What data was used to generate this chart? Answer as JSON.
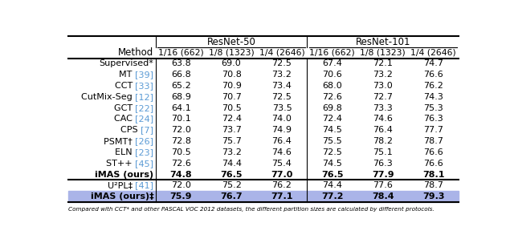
{
  "col_headers_sub": [
    "Method",
    "1/16 (662)",
    "1/8 (1323)",
    "1/4 (2646)",
    "1/16 (662)",
    "1/8 (1323)",
    "1/4 (2646)"
  ],
  "rows": [
    {
      "method": "Supervised*",
      "cite": "",
      "values": [
        "63.8",
        "69.0",
        "72.5",
        "67.4",
        "72.1",
        "74.7"
      ],
      "bold": false,
      "highlight": false
    },
    {
      "method": "MT ",
      "cite": "[39]",
      "values": [
        "66.8",
        "70.8",
        "73.2",
        "70.6",
        "73.2",
        "76.6"
      ],
      "bold": false,
      "highlight": false
    },
    {
      "method": "CCT ",
      "cite": "[33]",
      "values": [
        "65.2",
        "70.9",
        "73.4",
        "68.0",
        "73.0",
        "76.2"
      ],
      "bold": false,
      "highlight": false
    },
    {
      "method": "CutMix-Seg ",
      "cite": "[12]",
      "values": [
        "68.9",
        "70.7",
        "72.5",
        "72.6",
        "72.7",
        "74.3"
      ],
      "bold": false,
      "highlight": false
    },
    {
      "method": "GCT ",
      "cite": "[22]",
      "values": [
        "64.1",
        "70.5",
        "73.5",
        "69.8",
        "73.3",
        "75.3"
      ],
      "bold": false,
      "highlight": false
    },
    {
      "method": "CAC ",
      "cite": "[24]",
      "values": [
        "70.1",
        "72.4",
        "74.0",
        "72.4",
        "74.6",
        "76.3"
      ],
      "bold": false,
      "highlight": false
    },
    {
      "method": "CPS ",
      "cite": "[7]",
      "values": [
        "72.0",
        "73.7",
        "74.9",
        "74.5",
        "76.4",
        "77.7"
      ],
      "bold": false,
      "highlight": false
    },
    {
      "method": "PSMT† ",
      "cite": "[26]",
      "values": [
        "72.8",
        "75.7",
        "76.4",
        "75.5",
        "78.2",
        "78.7"
      ],
      "bold": false,
      "highlight": false
    },
    {
      "method": "ELN ",
      "cite": "[23]",
      "values": [
        "70.5",
        "73.2",
        "74.6",
        "72.5",
        "75.1",
        "76.6"
      ],
      "bold": false,
      "highlight": false
    },
    {
      "method": "ST++ ",
      "cite": "[45]",
      "values": [
        "72.6",
        "74.4",
        "75.4",
        "74.5",
        "76.3",
        "76.6"
      ],
      "bold": false,
      "highlight": false
    },
    {
      "method": "iMAS (ours)",
      "cite": "",
      "values": [
        "74.8",
        "76.5",
        "77.0",
        "76.5",
        "77.9",
        "78.1"
      ],
      "bold": true,
      "highlight": false
    },
    {
      "method": "U²PL‡ ",
      "cite": "[41]",
      "values": [
        "72.0",
        "75.2",
        "76.2",
        "74.4",
        "77.6",
        "78.7"
      ],
      "bold": false,
      "highlight": false
    },
    {
      "method": "iMAS (ours)‡",
      "cite": "",
      "values": [
        "75.9",
        "76.7",
        "77.1",
        "77.2",
        "78.4",
        "79.3"
      ],
      "bold": true,
      "highlight": true
    }
  ],
  "highlight_color": "#aab4e8",
  "ref_color": "#5b9bd5",
  "footnote": "Compared with CCT* and other PASCAL VOC 2012 datasets, the different partition sizes are calculated by different protocols."
}
